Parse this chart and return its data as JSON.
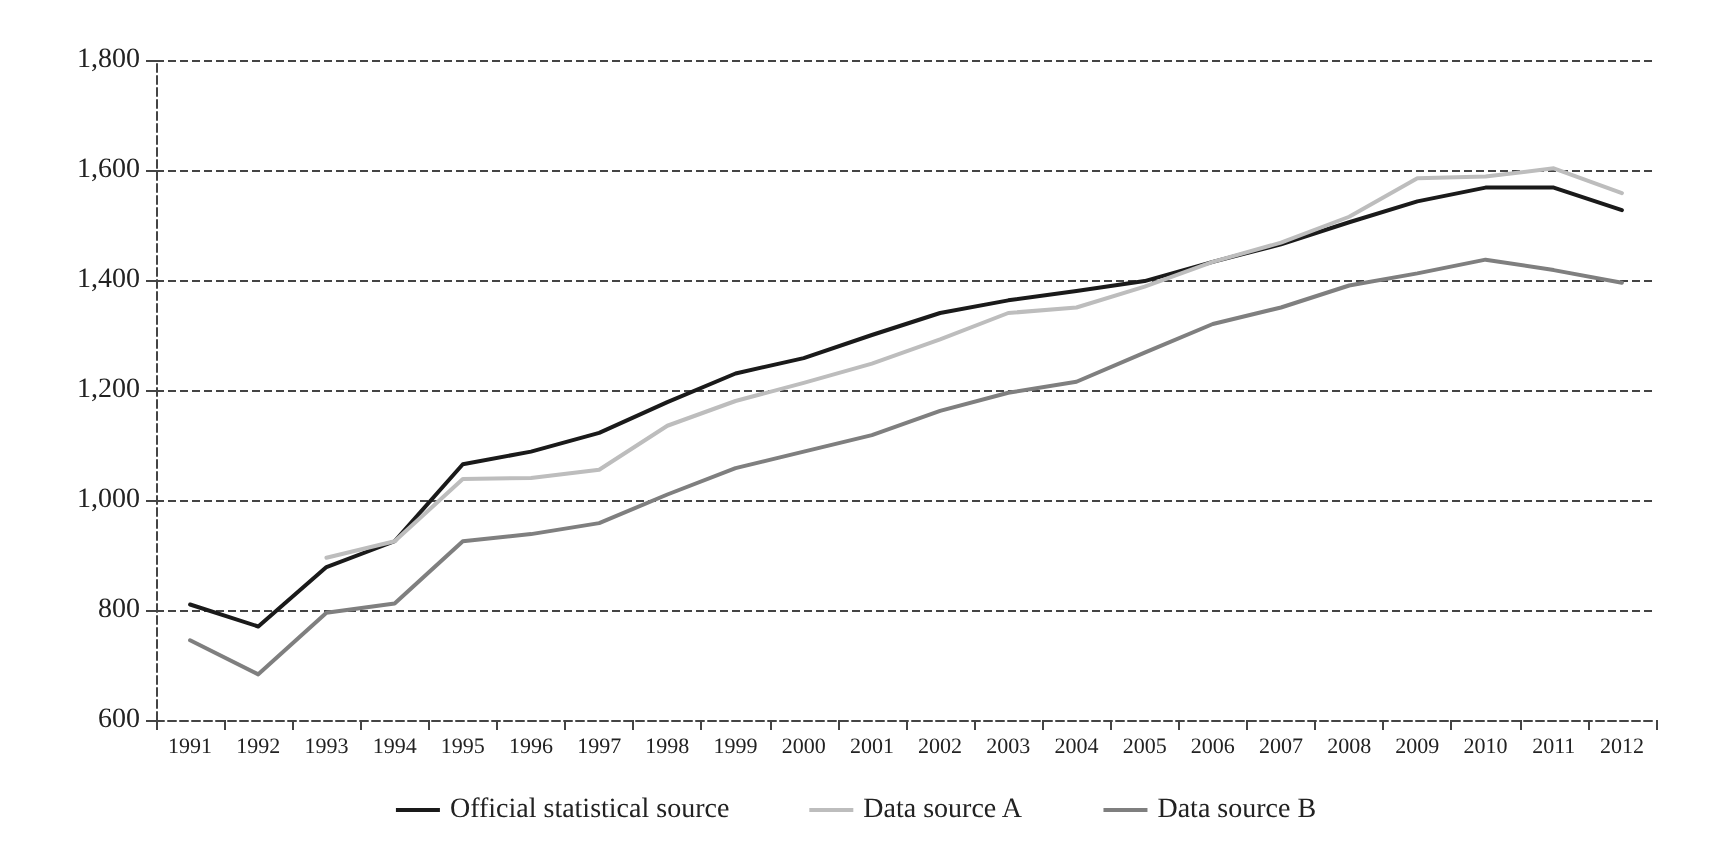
{
  "chart_data": {
    "type": "line",
    "categories": [
      "1991",
      "1992",
      "1993",
      "1994",
      "1995",
      "1996",
      "1997",
      "1998",
      "1999",
      "2000",
      "2001",
      "2002",
      "2003",
      "2004",
      "2005",
      "2006",
      "2007",
      "2008",
      "2009",
      "2010",
      "2011",
      "2012"
    ],
    "series": [
      {
        "name": "Official statistical source",
        "color": "#1a1a1a",
        "values": [
          810,
          770,
          878,
          925,
          1065,
          1088,
          1122,
          1178,
          1230,
          1258,
          1300,
          1340,
          1363,
          1380,
          1398,
          1433,
          1465,
          1505,
          1543,
          1568,
          1568,
          1527
        ]
      },
      {
        "name": "Data source A",
        "color": "#bdbdbd",
        "values": [
          null,
          null,
          895,
          925,
          1038,
          1040,
          1055,
          1135,
          1180,
          1213,
          1248,
          1292,
          1340,
          1350,
          1388,
          1433,
          1468,
          1515,
          1585,
          1588,
          1603,
          1558
        ]
      },
      {
        "name": "Data source B",
        "color": "#7f7f7f",
        "values": [
          745,
          683,
          795,
          812,
          925,
          938,
          958,
          1010,
          1058,
          1088,
          1118,
          1162,
          1195,
          1215,
          1268,
          1320,
          1350,
          1390,
          1412,
          1437,
          1418,
          1395
        ]
      }
    ],
    "ylim": [
      600,
      1800
    ],
    "yticks": [
      {
        "value": 600,
        "label": "600"
      },
      {
        "value": 800,
        "label": "800"
      },
      {
        "value": 1000,
        "label": "1,000"
      },
      {
        "value": 1200,
        "label": "1,200"
      },
      {
        "value": 1400,
        "label": "1,400"
      },
      {
        "value": 1600,
        "label": "1,600"
      },
      {
        "value": 1800,
        "label": "1,800"
      }
    ],
    "grid": "y",
    "legend": "bottom",
    "marker": "none",
    "line_style": "solid"
  }
}
